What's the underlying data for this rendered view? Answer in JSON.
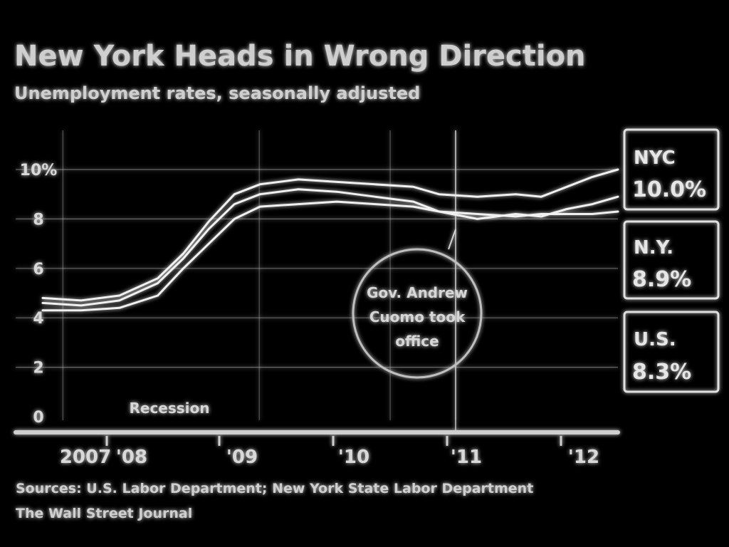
{
  "chart_data": {
    "type": "line",
    "title": "New York Heads in Wrong Direction",
    "subtitle": "Unemployment rates, seasonally adjusted",
    "xlabel": "",
    "ylabel": "",
    "yticks": [
      "10%",
      "8",
      "6",
      "4",
      "2",
      "0"
    ],
    "ylim": [
      0,
      11
    ],
    "xlim": [
      2007.9,
      2012.4
    ],
    "xticks": [
      {
        "label": "2007",
        "at": 2007.9
      },
      {
        "label": "'08",
        "at": 2008.0
      },
      {
        "label": "'09",
        "at": 2009.0
      },
      {
        "label": "'10",
        "at": 2010.0
      },
      {
        "label": "'11",
        "at": 2011.0
      },
      {
        "label": "'12",
        "at": 2012.0
      }
    ],
    "grid": true,
    "series": [
      {
        "name": "NYC",
        "label": "NYC",
        "last_value": "10.0%",
        "x": [
          2007.9,
          2008.2,
          2008.5,
          2008.8,
          2009.0,
          2009.2,
          2009.4,
          2009.6,
          2009.9,
          2010.2,
          2010.5,
          2010.8,
          2011.0,
          2011.3,
          2011.6,
          2011.8,
          2012.0,
          2012.2,
          2012.4
        ],
        "values": [
          4.8,
          4.7,
          4.9,
          5.6,
          6.6,
          7.9,
          9.0,
          9.4,
          9.6,
          9.5,
          9.4,
          9.3,
          9.0,
          8.9,
          9.0,
          8.9,
          9.3,
          9.7,
          10.0
        ]
      },
      {
        "name": "N.Y.",
        "label": "N.Y.",
        "last_value": "8.9%",
        "x": [
          2007.9,
          2008.2,
          2008.5,
          2008.8,
          2009.0,
          2009.2,
          2009.4,
          2009.6,
          2009.9,
          2010.2,
          2010.5,
          2010.8,
          2011.0,
          2011.3,
          2011.6,
          2011.8,
          2012.0,
          2012.2,
          2012.4
        ],
        "values": [
          4.6,
          4.5,
          4.7,
          5.4,
          6.4,
          7.6,
          8.6,
          9.0,
          9.2,
          9.1,
          8.9,
          8.7,
          8.3,
          8.0,
          8.2,
          8.1,
          8.4,
          8.6,
          8.9
        ]
      },
      {
        "name": "U.S.",
        "label": "U.S.",
        "last_value": "8.3%",
        "x": [
          2007.9,
          2008.2,
          2008.5,
          2008.8,
          2009.0,
          2009.2,
          2009.4,
          2009.6,
          2009.9,
          2010.2,
          2010.5,
          2010.8,
          2011.0,
          2011.3,
          2011.6,
          2011.8,
          2012.0,
          2012.2,
          2012.4
        ],
        "values": [
          4.3,
          4.3,
          4.4,
          4.9,
          6.0,
          7.0,
          8.0,
          8.5,
          8.6,
          8.7,
          8.6,
          8.5,
          8.3,
          8.2,
          8.1,
          8.2,
          8.2,
          8.2,
          8.3
        ]
      }
    ],
    "annotations": [
      {
        "text": [
          "Gov. Andrew",
          "Cuomo took",
          "office"
        ],
        "at_x": 2011.0
      },
      {
        "text": [
          "Recession"
        ],
        "from_x": 2008.0,
        "to_x": 2009.5
      }
    ]
  },
  "source": {
    "line1": "Sources: U.S. Labor Department; New York State Labor Department",
    "line2": "The Wall Street Journal"
  },
  "colors": {
    "background": "#000000",
    "line": "#f0f0f0",
    "text": "#d8d8d8"
  }
}
